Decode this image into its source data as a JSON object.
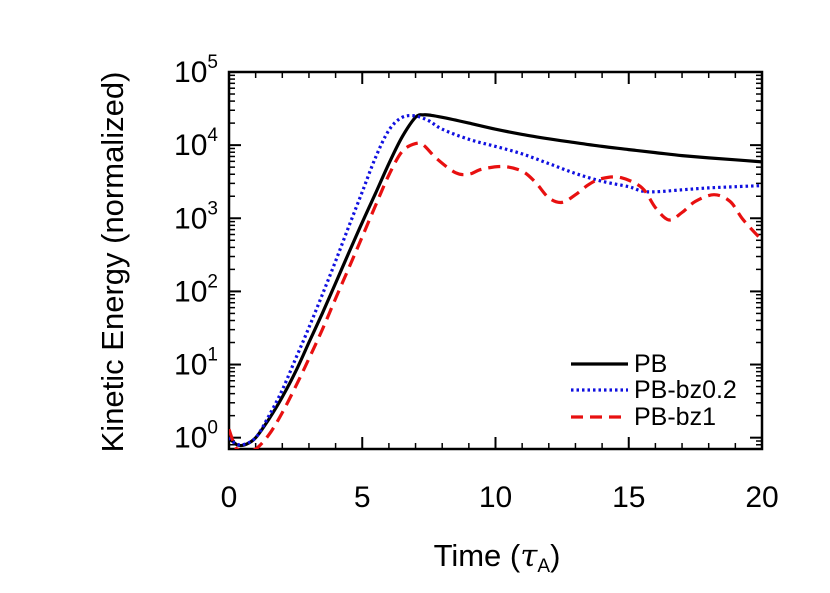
{
  "chart_data": {
    "type": "line",
    "xlabel": "Time (",
    "xlabel_symbol": "τ",
    "xlabel_subscript": "A",
    "xlabel_close": ")",
    "ylabel": "Kinetic Energy (normalized)",
    "xlim": [
      0,
      20
    ],
    "ylim": [
      0.7,
      100000
    ],
    "yscale": "log",
    "grid": false,
    "legend_position": "bottom-right",
    "x_ticks": [
      0,
      5,
      10,
      15,
      20
    ],
    "x_tick_labels": [
      "0",
      "5",
      "10",
      "15",
      "20"
    ],
    "y_ticks": [
      {
        "value": 1,
        "base": "10",
        "exp": "0"
      },
      {
        "value": 10,
        "base": "10",
        "exp": "1"
      },
      {
        "value": 100,
        "base": "10",
        "exp": "2"
      },
      {
        "value": 1000,
        "base": "10",
        "exp": "3"
      },
      {
        "value": 10000,
        "base": "10",
        "exp": "4"
      },
      {
        "value": 100000,
        "base": "10",
        "exp": "5"
      }
    ],
    "series": [
      {
        "name": "PB",
        "color": "#000000",
        "style": "solid",
        "x": [
          0,
          0.3,
          0.6,
          1,
          1.5,
          2,
          2.5,
          3,
          3.5,
          4,
          4.5,
          5,
          5.5,
          6,
          6.5,
          7,
          7.3,
          7.6,
          8,
          8.5,
          9,
          10,
          11,
          12,
          13,
          14,
          15,
          16,
          17,
          18,
          19,
          20
        ],
        "y": [
          1.0,
          0.8,
          0.8,
          1.0,
          1.8,
          3.6,
          8,
          20,
          50,
          130,
          340,
          880,
          2200,
          5600,
          13000,
          24000,
          26000,
          25500,
          24000,
          22000,
          20000,
          16500,
          14000,
          12200,
          10800,
          9600,
          8700,
          7900,
          7200,
          6700,
          6300,
          5900
        ]
      },
      {
        "name": "PB-bz0.2",
        "color": "#1010e0",
        "style": "dotted",
        "x": [
          0,
          0.2,
          0.5,
          1,
          1.5,
          2,
          2.5,
          3,
          3.5,
          4,
          4.5,
          5,
          5.5,
          6,
          6.5,
          7,
          7.5,
          8,
          9,
          10,
          11,
          12,
          13,
          14,
          15,
          15.5,
          16,
          17,
          18,
          19,
          20
        ],
        "y": [
          1.0,
          0.85,
          0.8,
          1.0,
          2.0,
          4.5,
          12,
          32,
          90,
          260,
          780,
          2300,
          6800,
          16000,
          24000,
          25000,
          21500,
          16500,
          12000,
          9600,
          7600,
          5600,
          4100,
          3200,
          2700,
          2350,
          2300,
          2450,
          2600,
          2700,
          2800
        ]
      },
      {
        "name": "PB-bz1",
        "color": "#e81010",
        "style": "dashed",
        "x": [
          0,
          0.15,
          0.3,
          0.6,
          1,
          1.5,
          2,
          2.5,
          3,
          3.5,
          4,
          4.5,
          5,
          5.5,
          6,
          6.5,
          7,
          7.3,
          7.8,
          8.5,
          9,
          9.5,
          10.3,
          11,
          11.5,
          12,
          12.5,
          13,
          13.5,
          14,
          14.7,
          15.5,
          16,
          16.5,
          17,
          17.5,
          18.2,
          18.8,
          19.3,
          20
        ],
        "y": [
          1.3,
          0.9,
          0.7,
          0.65,
          0.7,
          1.1,
          2.2,
          5,
          12,
          30,
          80,
          210,
          560,
          1500,
          3900,
          8200,
          10500,
          10000,
          6500,
          4200,
          4000,
          4700,
          5100,
          4400,
          3100,
          1900,
          1650,
          2100,
          2900,
          3500,
          3600,
          2600,
          1400,
          950,
          1200,
          1700,
          2100,
          1700,
          950,
          500
        ]
      }
    ]
  }
}
